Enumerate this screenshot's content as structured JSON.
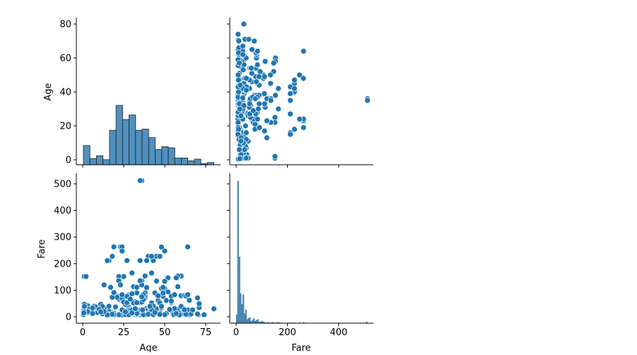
{
  "chart_data": {
    "type": "pairplot",
    "variables": [
      "Age",
      "Fare"
    ],
    "axis_labels": {
      "age": "Age",
      "fare": "Fare"
    },
    "age_ticks": [
      0,
      20,
      40,
      60,
      80
    ],
    "age_x_ticks": [
      0,
      25,
      50,
      75
    ],
    "fare_ticks": [
      0,
      100,
      200,
      300,
      400,
      500
    ],
    "fare_x_ticks": [
      0,
      200,
      400
    ],
    "age_range": [
      -3,
      84
    ],
    "fare_range": [
      -25,
      537
    ],
    "color": "#1f77b4",
    "hist_color": "#3d84b8",
    "age_hist": {
      "bin_start": 0.42,
      "bin_width": 3.979,
      "counts": [
        34,
        11,
        16,
        9,
        61,
        105,
        80,
        88,
        61,
        63,
        48,
        27,
        32,
        30,
        12,
        12,
        7,
        10,
        2,
        4
      ]
    },
    "fare_hist": {
      "bin_start": 0,
      "bin_width": 5.12,
      "counts": [
        18,
        300,
        140,
        62,
        40,
        60,
        20,
        28,
        8,
        10,
        12,
        4,
        6,
        10,
        4,
        6,
        8,
        3,
        2,
        4,
        3,
        2,
        1,
        1,
        2,
        1,
        0,
        2,
        1,
        1,
        0,
        2,
        1,
        1,
        0,
        0,
        0,
        0,
        0,
        0,
        1,
        0,
        1,
        0,
        1,
        0,
        0,
        0,
        1,
        0,
        0,
        2,
        0,
        0,
        0,
        0,
        0,
        0,
        0,
        0,
        0,
        0,
        0,
        0,
        0,
        0,
        0,
        0,
        0,
        0,
        0,
        0,
        0,
        0,
        0,
        0,
        0,
        0,
        0,
        0,
        0,
        0,
        0,
        0,
        0,
        0,
        0,
        0,
        0,
        0,
        0,
        0,
        0,
        0,
        0,
        0,
        0,
        0,
        0,
        3
      ]
    },
    "points": [
      [
        22,
        7.25
      ],
      [
        38,
        71.28
      ],
      [
        26,
        7.92
      ],
      [
        35,
        53.1
      ],
      [
        35,
        8.05
      ],
      [
        54,
        51.86
      ],
      [
        2,
        21.08
      ],
      [
        27,
        11.13
      ],
      [
        14,
        30.07
      ],
      [
        4,
        16.7
      ],
      [
        58,
        26.55
      ],
      [
        20,
        8.05
      ],
      [
        39,
        31.28
      ],
      [
        14,
        7.85
      ],
      [
        55,
        16
      ],
      [
        2,
        29.13
      ],
      [
        31,
        18
      ],
      [
        35,
        26
      ],
      [
        34,
        13
      ],
      [
        15,
        8.03
      ],
      [
        28,
        35.5
      ],
      [
        8,
        21.08
      ],
      [
        38,
        7.23
      ],
      [
        19,
        263
      ],
      [
        40,
        27.72
      ],
      [
        66,
        10.5
      ],
      [
        28,
        82.17
      ],
      [
        42,
        52
      ],
      [
        21,
        8.05
      ],
      [
        18,
        18
      ],
      [
        14,
        11.24
      ],
      [
        40,
        9.48
      ],
      [
        27,
        21
      ],
      [
        3,
        41.58
      ],
      [
        19,
        7.88
      ],
      [
        18,
        17.8
      ],
      [
        7,
        39.69
      ],
      [
        21,
        7.8
      ],
      [
        49,
        76.73
      ],
      [
        29,
        26
      ],
      [
        65,
        61.98
      ],
      [
        21,
        10.5
      ],
      [
        28.5,
        7.23
      ],
      [
        5,
        27.75
      ],
      [
        11,
        46.9
      ],
      [
        22,
        7.23
      ],
      [
        38,
        80
      ],
      [
        45,
        83.48
      ],
      [
        4,
        27.9
      ],
      [
        29,
        27.72
      ],
      [
        19,
        15.25
      ],
      [
        17,
        10.5
      ],
      [
        26,
        8.16
      ],
      [
        32,
        7.93
      ],
      [
        16,
        8.66
      ],
      [
        21,
        10.5
      ],
      [
        26,
        46.9
      ],
      [
        32,
        56.5
      ],
      [
        25,
        7.65
      ],
      [
        0.83,
        29
      ],
      [
        30,
        12.48
      ],
      [
        22,
        9
      ],
      [
        29,
        9.5
      ],
      [
        28,
        7.79
      ],
      [
        17,
        7.05
      ],
      [
        33,
        15.85
      ],
      [
        16,
        21
      ],
      [
        23,
        263
      ],
      [
        24,
        263
      ],
      [
        29,
        22.02
      ],
      [
        20,
        7.9
      ],
      [
        46,
        61.18
      ],
      [
        26,
        7.73
      ],
      [
        59,
        13.5
      ],
      [
        71,
        34.65
      ],
      [
        23,
        63.36
      ],
      [
        34,
        23
      ],
      [
        34,
        26
      ],
      [
        28,
        7.9
      ],
      [
        21,
        77.29
      ],
      [
        33,
        8.65
      ],
      [
        37,
        7.93
      ],
      [
        28,
        24.15
      ],
      [
        21,
        7.9
      ],
      [
        38,
        90
      ],
      [
        47,
        14.5
      ],
      [
        14.5,
        14.45
      ],
      [
        22,
        7.23
      ],
      [
        20,
        9.22
      ],
      [
        17,
        7.22
      ],
      [
        21,
        8.05
      ],
      [
        70.5,
        7.75
      ],
      [
        29,
        10.46
      ],
      [
        24,
        247.52
      ],
      [
        2,
        29.13
      ],
      [
        21,
        7.05
      ],
      [
        32.5,
        30.07
      ],
      [
        32.5,
        13
      ],
      [
        54,
        77.29
      ],
      [
        12,
        11.24
      ],
      [
        24,
        7.14
      ],
      [
        45,
        12.48
      ],
      [
        33,
        12.35
      ],
      [
        20,
        9.5
      ],
      [
        47,
        52
      ],
      [
        29,
        26
      ],
      [
        25,
        7.05
      ],
      [
        23,
        9.5
      ],
      [
        19,
        15.5
      ],
      [
        37,
        7.78
      ],
      [
        16,
        39.69
      ],
      [
        24,
        7.05
      ],
      [
        22,
        7.8
      ],
      [
        24,
        26
      ],
      [
        19,
        13
      ],
      [
        18,
        7.75
      ],
      [
        19,
        7.75
      ],
      [
        27,
        7.92
      ],
      [
        9,
        31.39
      ],
      [
        36.5,
        26
      ],
      [
        42,
        12
      ],
      [
        51,
        12.52
      ],
      [
        22,
        66.6
      ],
      [
        55.5,
        8.05
      ],
      [
        40.5,
        14.5
      ],
      [
        51,
        61.38
      ],
      [
        16,
        7.73
      ],
      [
        30,
        26
      ],
      [
        44,
        13.42
      ],
      [
        40,
        9.59
      ],
      [
        26,
        7.9
      ],
      [
        17,
        7.73
      ],
      [
        1,
        11.13
      ],
      [
        9,
        20.53
      ],
      [
        45,
        26.55
      ],
      [
        28,
        7.85
      ],
      [
        61,
        32.32
      ],
      [
        4,
        29.13
      ],
      [
        1,
        46.9
      ],
      [
        21,
        73.5
      ],
      [
        56,
        30.7
      ],
      [
        18,
        9.6
      ],
      [
        50,
        247.52
      ],
      [
        30,
        14.5
      ],
      [
        36,
        512.33
      ],
      [
        35,
        512.33
      ],
      [
        9,
        15.9
      ],
      [
        0.42,
        8.52
      ],
      [
        0.92,
        151.55
      ],
      [
        2,
        151.55
      ],
      [
        25,
        151.55
      ],
      [
        18,
        227.53
      ],
      [
        35,
        211.5
      ],
      [
        16,
        211.34
      ],
      [
        64,
        263
      ],
      [
        45,
        227.53
      ],
      [
        40,
        227.53
      ],
      [
        36,
        135.63
      ],
      [
        30,
        164.87
      ],
      [
        52,
        146.52
      ],
      [
        60,
        153.46
      ],
      [
        36,
        120
      ],
      [
        48,
        106.43
      ],
      [
        60,
        79.2
      ],
      [
        62,
        80
      ],
      [
        58,
        153.46
      ],
      [
        65,
        26
      ],
      [
        70,
        71
      ],
      [
        74,
        7.78
      ],
      [
        80,
        30
      ],
      [
        63,
        77.96
      ],
      [
        56,
        83.16
      ],
      [
        50,
        106.43
      ],
      [
        49,
        110.88
      ],
      [
        35,
        135.63
      ],
      [
        31,
        113.28
      ],
      [
        54,
        55.44
      ],
      [
        43,
        211.5
      ],
      [
        39,
        211.34
      ],
      [
        22,
        151.55
      ],
      [
        58,
        113.28
      ],
      [
        47,
        227.53
      ],
      [
        17,
        110.88
      ],
      [
        48,
        262.38
      ],
      [
        15,
        211.34
      ],
      [
        13,
        120
      ],
      [
        22,
        135.63
      ],
      [
        42,
        227.53
      ],
      [
        37,
        83.16
      ],
      [
        33,
        90
      ],
      [
        24,
        69.3
      ],
      [
        50,
        133.65
      ],
      [
        61,
        33.5
      ],
      [
        65,
        7.75
      ],
      [
        66,
        10.5
      ],
      [
        62,
        10.5
      ],
      [
        59,
        7.25
      ],
      [
        64,
        26
      ],
      [
        57,
        12.35
      ],
      [
        60,
        39
      ],
      [
        70,
        10.5
      ],
      [
        71,
        49.5
      ],
      [
        45,
        30
      ],
      [
        8,
        36.75
      ],
      [
        1,
        39
      ],
      [
        3,
        15.9
      ],
      [
        6,
        33
      ],
      [
        12,
        39
      ],
      [
        15,
        7.23
      ],
      [
        27,
        211.5
      ],
      [
        43,
        40
      ],
      [
        36,
        55
      ],
      [
        41,
        36
      ],
      [
        44,
        90
      ],
      [
        52,
        93.5
      ],
      [
        39,
        110
      ],
      [
        27,
        76.7
      ],
      [
        30,
        86.5
      ],
      [
        23,
        120
      ],
      [
        42,
        26.29
      ],
      [
        48,
        34.38
      ],
      [
        53,
        28.5
      ],
      [
        63,
        9.59
      ],
      [
        38,
        153.46
      ],
      [
        31,
        52
      ],
      [
        25,
        55.9
      ],
      [
        33,
        53.1
      ],
      [
        46,
        79.2
      ],
      [
        50,
        8.05
      ],
      [
        47,
        9
      ],
      [
        53,
        27.45
      ],
      [
        57,
        146.52
      ],
      [
        49,
        89.1
      ],
      [
        43,
        8.05
      ],
      [
        26,
        18.79
      ],
      [
        32,
        30.5
      ],
      [
        44,
        16.1
      ],
      [
        41,
        39.69
      ],
      [
        37,
        65
      ],
      [
        20,
        36.75
      ],
      [
        13,
        19.5
      ],
      [
        10,
        27.9
      ],
      [
        6,
        12.47
      ],
      [
        3,
        19.26
      ],
      [
        0.75,
        19.26
      ],
      [
        0.67,
        14.5
      ],
      [
        11,
        18.75
      ],
      [
        18,
        73.5
      ],
      [
        19,
        91.08
      ],
      [
        24,
        83.16
      ],
      [
        27,
        53.1
      ],
      [
        29,
        66.6
      ],
      [
        33,
        110.88
      ],
      [
        36,
        75.25
      ],
      [
        42,
        164.87
      ],
      [
        45,
        134.5
      ],
      [
        48,
        39.6
      ],
      [
        54,
        59.4
      ],
      [
        62,
        26.55
      ],
      [
        64,
        83.16
      ],
      [
        67,
        26
      ]
    ]
  }
}
